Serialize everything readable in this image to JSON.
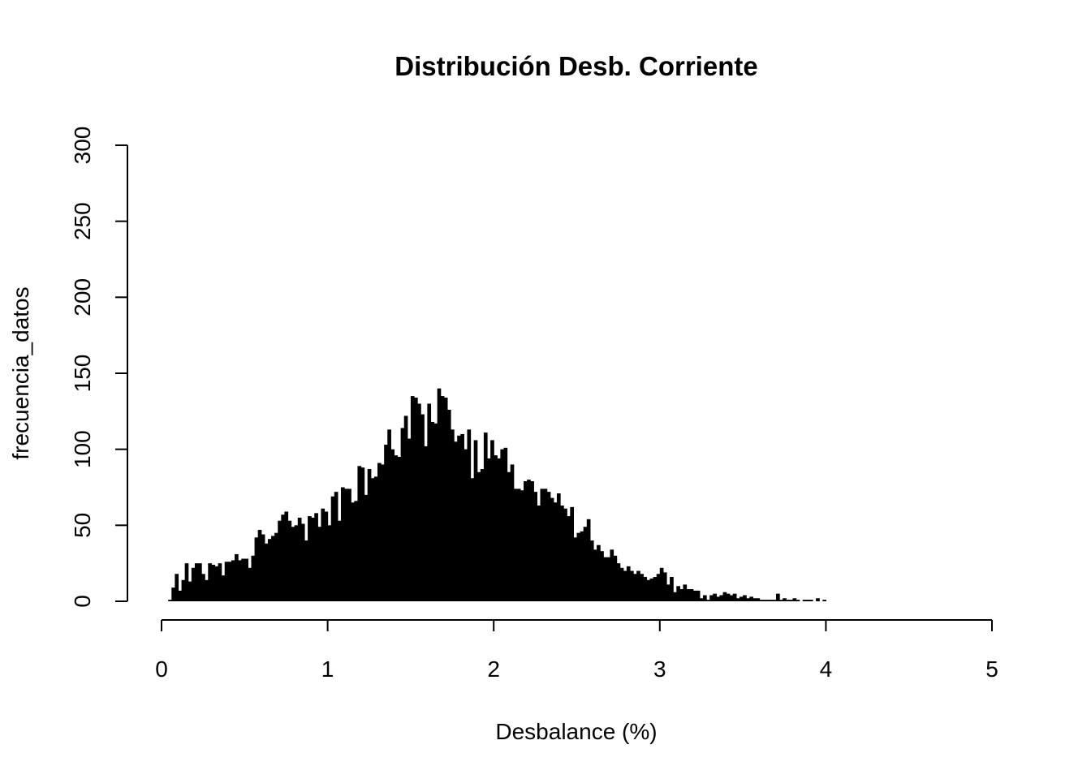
{
  "chart_data": {
    "type": "bar",
    "title": "Distribución Desb. Corriente",
    "xlabel": "Desbalance (%)",
    "ylabel": "frecuencia_datos",
    "xlim": [
      0,
      5
    ],
    "ylim": [
      0,
      300
    ],
    "x_ticks": [
      "0",
      "1",
      "2",
      "3",
      "4",
      "5"
    ],
    "y_ticks": [
      "0",
      "50",
      "100",
      "150",
      "200",
      "250",
      "300"
    ],
    "bin_width": 0.02,
    "bin_start": 0.04,
    "values": [
      1,
      9,
      18,
      7,
      14,
      25,
      13,
      22,
      25,
      25,
      18,
      14,
      25,
      24,
      23,
      25,
      17,
      26,
      26,
      27,
      31,
      27,
      28,
      28,
      22,
      30,
      42,
      47,
      44,
      38,
      41,
      43,
      45,
      53,
      57,
      59,
      53,
      49,
      50,
      55,
      51,
      40,
      56,
      55,
      58,
      49,
      61,
      59,
      50,
      69,
      72,
      53,
      75,
      74,
      74,
      65,
      66,
      89,
      88,
      70,
      87,
      81,
      82,
      91,
      90,
      103,
      113,
      100,
      96,
      95,
      114,
      122,
      107,
      135,
      134,
      130,
      123,
      102,
      130,
      118,
      117,
      140,
      135,
      134,
      126,
      113,
      105,
      109,
      110,
      100,
      113,
      81,
      106,
      85,
      87,
      111,
      94,
      106,
      96,
      94,
      100,
      101,
      85,
      90,
      74,
      74,
      73,
      79,
      80,
      79,
      72,
      63,
      74,
      74,
      72,
      68,
      65,
      71,
      63,
      61,
      56,
      62,
      42,
      45,
      46,
      49,
      54,
      40,
      34,
      37,
      33,
      29,
      29,
      34,
      30,
      25,
      22,
      20,
      23,
      20,
      18,
      20,
      18,
      16,
      14,
      15,
      16,
      18,
      22,
      19,
      11,
      16,
      6,
      10,
      8,
      11,
      8,
      8,
      7,
      7,
      2,
      4,
      1,
      4,
      5,
      3,
      4,
      6,
      5,
      4,
      5,
      2,
      3,
      4,
      2,
      3,
      2,
      2,
      1,
      1,
      1,
      1,
      1,
      5,
      1,
      2,
      1,
      1,
      2,
      1,
      0,
      1,
      1,
      1,
      0,
      2,
      0,
      1
    ]
  }
}
